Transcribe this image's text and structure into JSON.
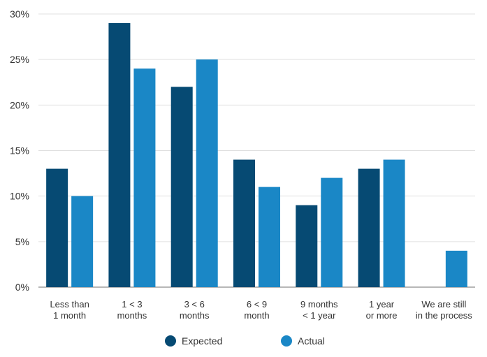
{
  "chart_data": {
    "type": "bar",
    "title": "",
    "xlabel": "",
    "ylabel": "",
    "ylim": [
      0,
      30
    ],
    "yticks": [
      0,
      5,
      10,
      15,
      20,
      25,
      30
    ],
    "ytick_suffix": "%",
    "grid": true,
    "legend_position": "bottom",
    "categories": [
      [
        "Less than",
        "1 month"
      ],
      [
        "1 < 3",
        "months"
      ],
      [
        "3 < 6",
        "months"
      ],
      [
        "6 < 9",
        "month"
      ],
      [
        "9 months",
        "< 1 year"
      ],
      [
        "1 year",
        "or more"
      ],
      [
        "We are still",
        "in the process"
      ]
    ],
    "series": [
      {
        "name": "Expected",
        "color": "#064a73",
        "values": [
          13,
          29,
          22,
          14,
          9,
          13,
          null
        ]
      },
      {
        "name": "Actual",
        "color": "#1a87c6",
        "values": [
          10,
          24,
          25,
          11,
          12,
          14,
          4
        ]
      }
    ]
  }
}
